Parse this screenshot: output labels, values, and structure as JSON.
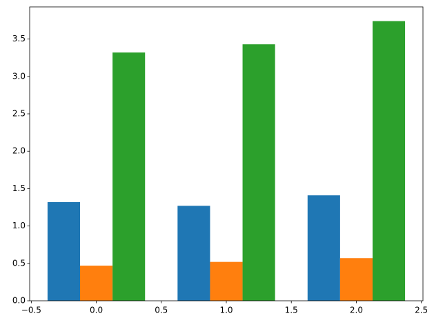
{
  "chart_data": {
    "type": "bar",
    "x": [
      0,
      1,
      2
    ],
    "bar_width": 0.25,
    "series": [
      {
        "color": "#1f77b4",
        "values": [
          1.32,
          1.27,
          1.41
        ]
      },
      {
        "color": "#ff7f0e",
        "values": [
          0.47,
          0.52,
          0.57
        ]
      },
      {
        "color": "#2ca02c",
        "values": [
          3.32,
          3.43,
          3.74
        ]
      }
    ],
    "xlim": [
      -0.5125,
      2.5125
    ],
    "xticks": [
      {
        "value": -0.5,
        "label": "−0.5"
      },
      {
        "value": 0,
        "label": "0.0"
      },
      0.5,
      {
        "value": 1,
        "label": "1.0"
      },
      1.5,
      {
        "value": 2,
        "label": "2.0"
      },
      2.5
    ],
    "ylim": [
      0,
      3.93
    ],
    "yticks": [
      {
        "value": 0,
        "label": "0.0"
      },
      0.5,
      {
        "value": 1,
        "label": "1.0"
      },
      1.5,
      {
        "value": 2,
        "label": "2.0"
      },
      2.5,
      {
        "value": 3,
        "label": "3.0"
      },
      3.5
    ],
    "grid": false
  }
}
